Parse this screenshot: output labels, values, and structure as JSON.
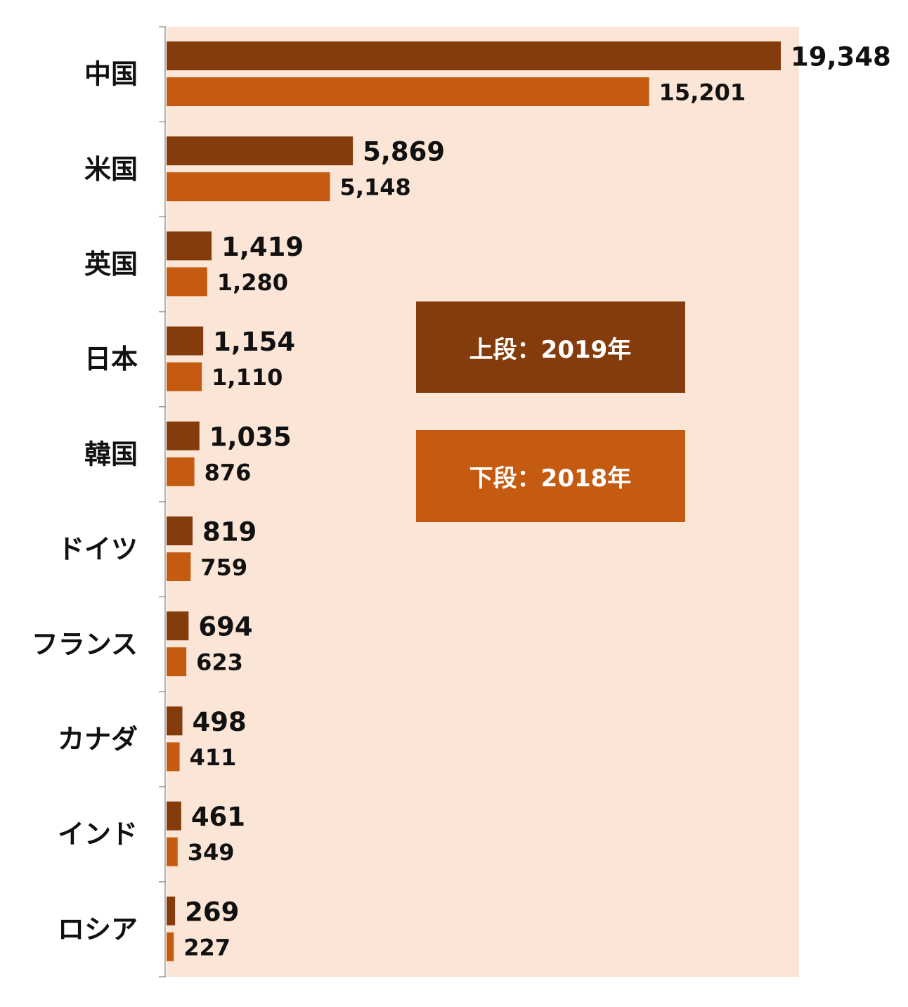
{
  "chart_data": {
    "type": "bar",
    "orientation": "horizontal",
    "categories": [
      "中国",
      "米国",
      "英国",
      "日本",
      "韓国",
      "ドイツ",
      "フランス",
      "カナダ",
      "インド",
      "ロシア"
    ],
    "series": [
      {
        "key": "2019",
        "values": [
          19348,
          5869,
          1419,
          1154,
          1035,
          819,
          694,
          498,
          461,
          269
        ],
        "labels": [
          "19,348",
          "5,869",
          "1,419",
          "1,154",
          "1,035",
          "819",
          "694",
          "498",
          "461",
          "269"
        ],
        "color": "#843c0c"
      },
      {
        "key": "2018",
        "values": [
          15201,
          5148,
          1280,
          1110,
          876,
          759,
          623,
          411,
          349,
          227
        ],
        "labels": [
          "15,201",
          "5,148",
          "1,280",
          "1,110",
          "876",
          "759",
          "623",
          "411",
          "349",
          "227"
        ],
        "color": "#c55a11"
      }
    ],
    "xlim": [
      0,
      20000
    ],
    "grid": false,
    "legend": [
      {
        "text": "上段：2019年",
        "color": "#843c0c"
      },
      {
        "text": "下段：2018年",
        "color": "#c55a11"
      }
    ],
    "legend_position": "center-right",
    "plot_background": "#fbe5d6"
  }
}
